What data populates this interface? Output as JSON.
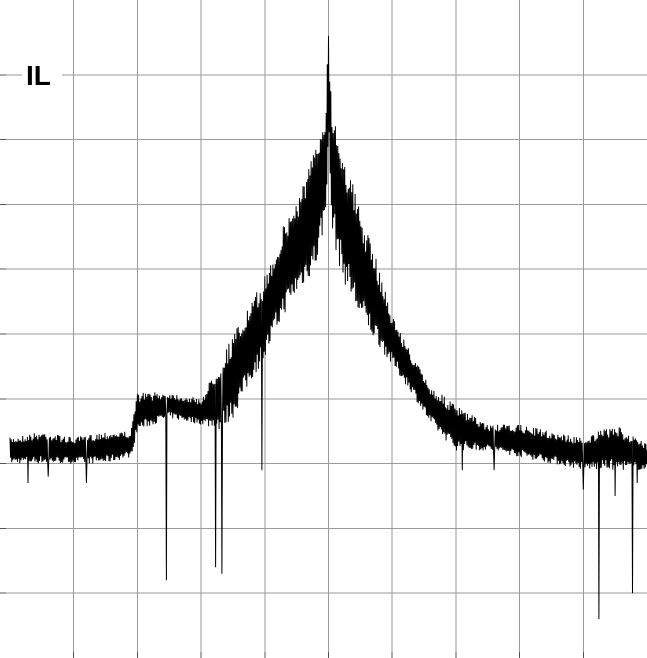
{
  "chart_data": {
    "type": "line",
    "title": "IL",
    "xlabel": "",
    "ylabel": "",
    "grid": true,
    "grid_divisions": {
      "x": 10,
      "y": 10
    },
    "xlim": [
      0,
      10
    ],
    "ylim": [
      0,
      10
    ],
    "colors": {
      "trace": "#000000",
      "grid": "#9a9a9a",
      "background": "#ffffff"
    },
    "series": [
      {
        "envelope": {
          "x": [
            0.0,
            0.5,
            1.0,
            1.5,
            1.9,
            2.0,
            2.5,
            3.0,
            3.3,
            3.5,
            3.8,
            4.0,
            4.3,
            4.5,
            4.8,
            4.95,
            5.0,
            5.05,
            5.2,
            5.5,
            5.8,
            6.0,
            6.3,
            6.6,
            7.0,
            7.5,
            8.0,
            8.5,
            9.0,
            9.5,
            10.0
          ],
          "top": [
            3.4,
            3.5,
            3.4,
            3.5,
            3.5,
            4.1,
            4.1,
            4.0,
            4.6,
            5.0,
            5.5,
            5.9,
            6.7,
            7.1,
            7.9,
            8.6,
            9.55,
            8.6,
            8.0,
            6.9,
            6.0,
            5.3,
            4.7,
            4.2,
            3.9,
            3.6,
            3.6,
            3.5,
            3.4,
            3.6,
            3.3
          ],
          "bottom": [
            3.0,
            3.0,
            3.0,
            3.0,
            3.1,
            3.5,
            3.7,
            3.6,
            3.5,
            3.7,
            4.3,
            4.6,
            5.3,
            5.6,
            6.0,
            6.7,
            8.0,
            6.6,
            5.9,
            5.2,
            4.8,
            4.5,
            4.1,
            3.6,
            3.2,
            3.2,
            3.1,
            3.0,
            2.9,
            2.9,
            2.9
          ]
        },
        "spikes": [
          {
            "x": 0.28,
            "y": 2.7
          },
          {
            "x": 0.6,
            "y": 2.8
          },
          {
            "x": 1.2,
            "y": 2.7
          },
          {
            "x": 2.45,
            "y": 1.2
          },
          {
            "x": 3.23,
            "y": 1.4
          },
          {
            "x": 3.33,
            "y": 1.3
          },
          {
            "x": 3.95,
            "y": 2.9
          },
          {
            "x": 7.1,
            "y": 2.9
          },
          {
            "x": 7.6,
            "y": 2.9
          },
          {
            "x": 9.0,
            "y": 2.6
          },
          {
            "x": 9.25,
            "y": 0.6
          },
          {
            "x": 9.5,
            "y": 2.5
          },
          {
            "x": 9.77,
            "y": 1.0
          },
          {
            "x": 9.85,
            "y": 2.7
          }
        ],
        "cusp": {
          "x": 5.0,
          "y": 9.6
        }
      }
    ]
  }
}
